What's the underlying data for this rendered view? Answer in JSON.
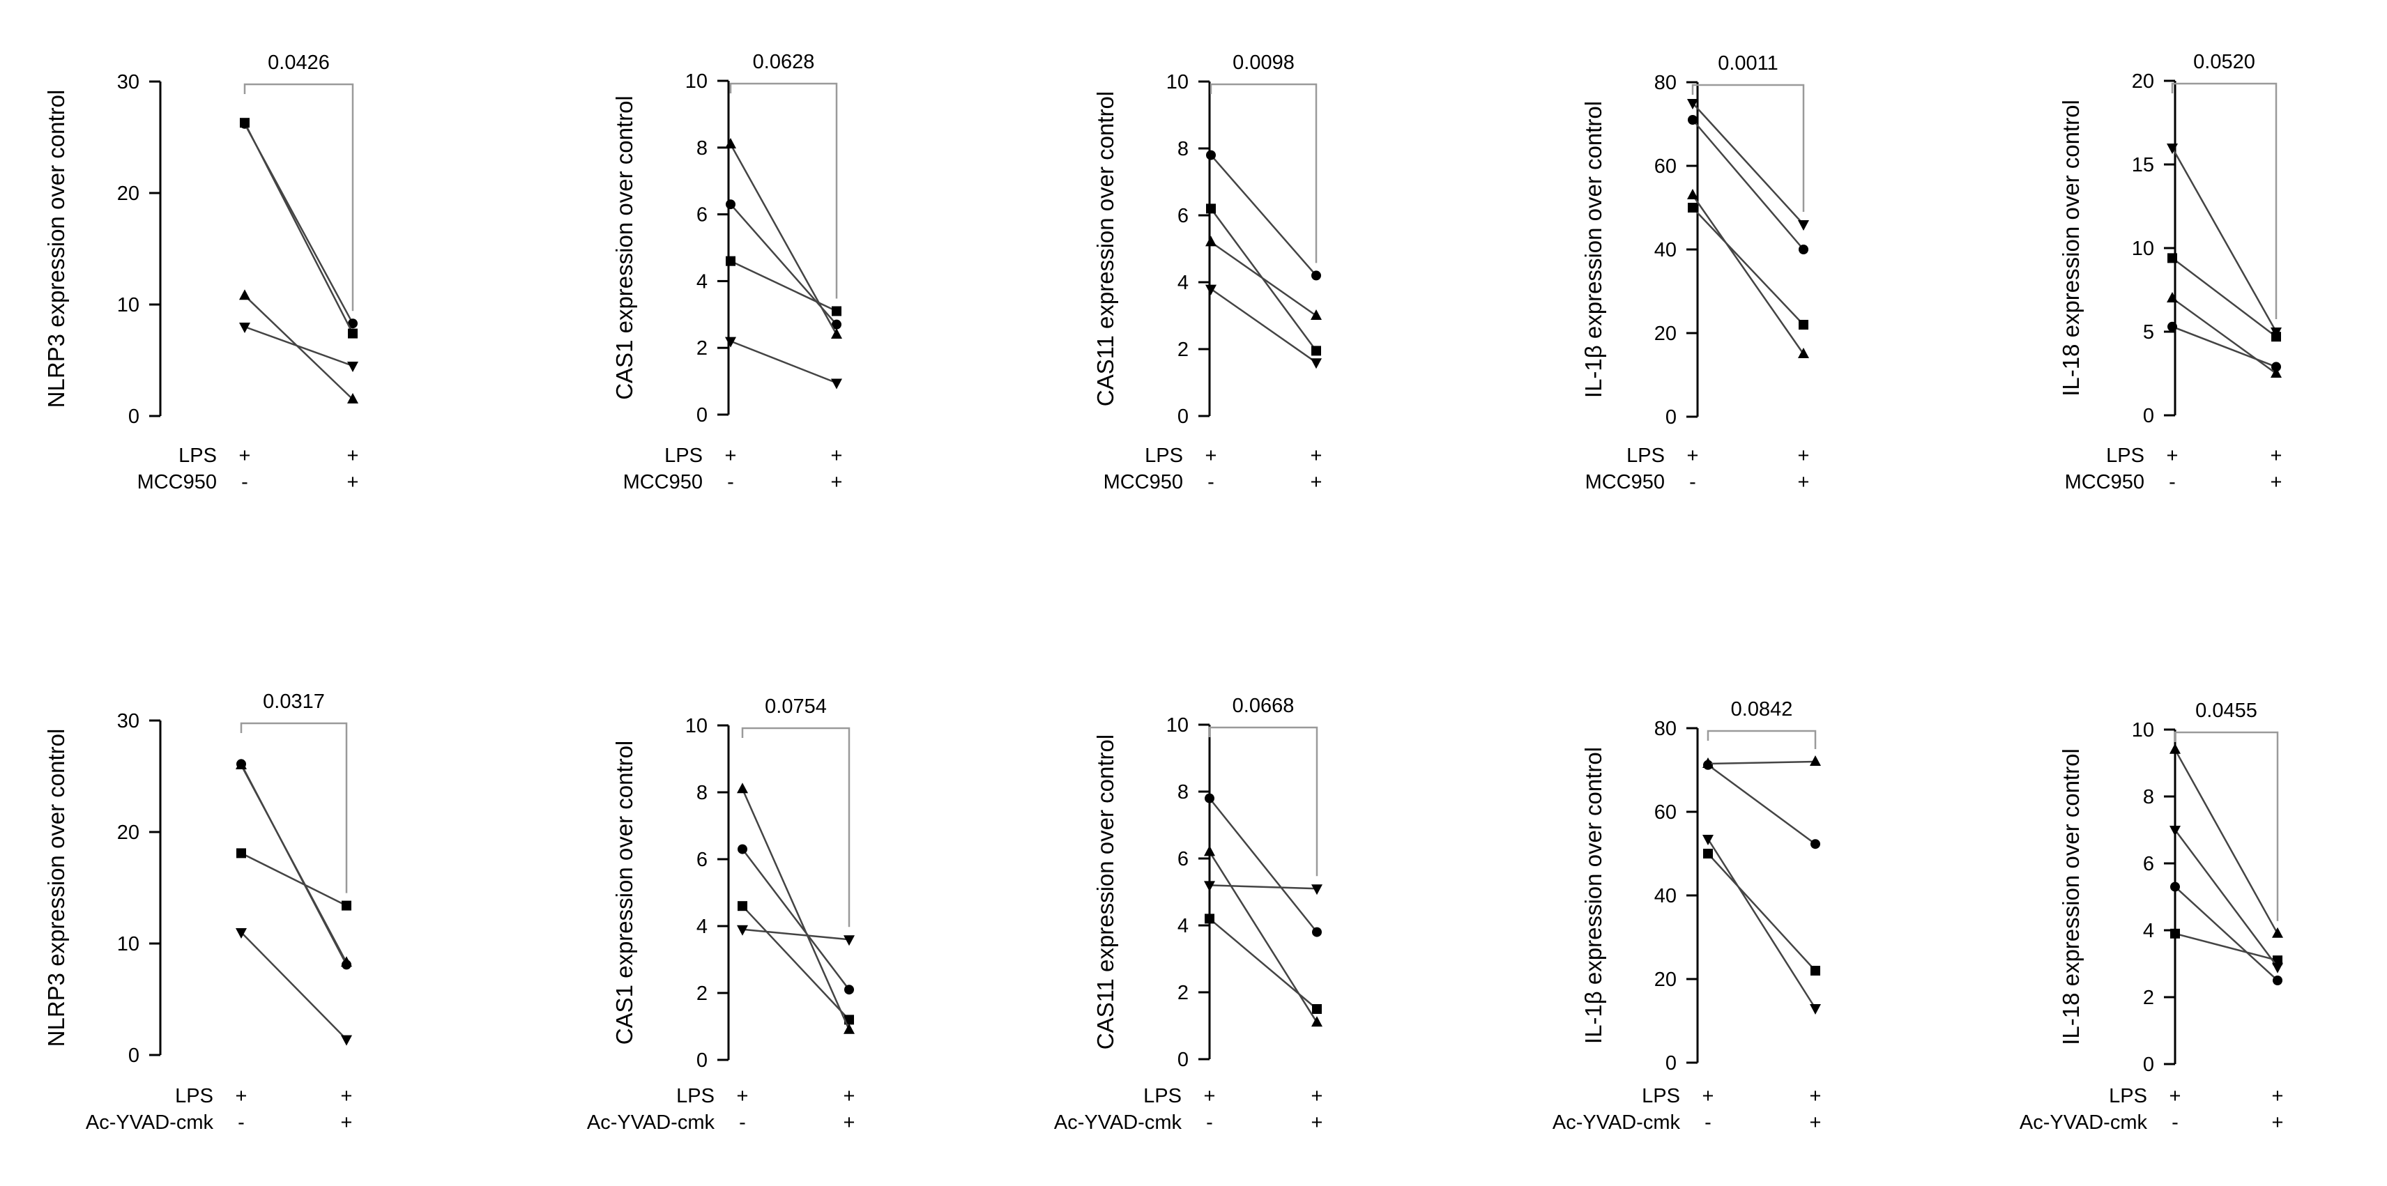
{
  "chart_data": [
    {
      "type": "line",
      "row": 1,
      "title": "",
      "xlabel": "",
      "ylabel": "NLRP3 expression over control",
      "ylim": [
        0,
        30
      ],
      "yticks": [
        0,
        10,
        20,
        30
      ],
      "p_value": "0.0426",
      "conditions": [
        {
          "name": "LPS",
          "values": [
            "+",
            "+"
          ]
        },
        {
          "name": "MCC950",
          "values": [
            "-",
            "+"
          ]
        }
      ],
      "series": [
        {
          "marker": "circle",
          "values": [
            26.2,
            8.3
          ]
        },
        {
          "marker": "square",
          "values": [
            26.3,
            7.4
          ]
        },
        {
          "marker": "triangle-up",
          "values": [
            10.8,
            1.5
          ]
        },
        {
          "marker": "triangle-down",
          "values": [
            8.0,
            4.5
          ]
        }
      ]
    },
    {
      "type": "line",
      "row": 1,
      "title": "",
      "xlabel": "",
      "ylabel": "CAS1 expression over control",
      "ylim": [
        0,
        10
      ],
      "yticks": [
        0,
        2,
        4,
        6,
        8,
        10
      ],
      "p_value": "0.0628",
      "conditions": [
        {
          "name": "LPS",
          "values": [
            "+",
            "+"
          ]
        },
        {
          "name": "MCC950",
          "values": [
            "-",
            "+"
          ]
        }
      ],
      "series": [
        {
          "marker": "circle",
          "values": [
            6.3,
            2.7
          ]
        },
        {
          "marker": "square",
          "values": [
            4.6,
            3.1
          ]
        },
        {
          "marker": "triangle-up",
          "values": [
            8.1,
            2.4
          ]
        },
        {
          "marker": "triangle-down",
          "values": [
            2.2,
            0.95
          ]
        }
      ]
    },
    {
      "type": "line",
      "row": 1,
      "title": "",
      "xlabel": "",
      "ylabel": "CAS11 expression over control",
      "ylim": [
        0,
        10
      ],
      "yticks": [
        0,
        2,
        4,
        6,
        8,
        10
      ],
      "p_value": "0.0098",
      "conditions": [
        {
          "name": "LPS",
          "values": [
            "+",
            "+"
          ]
        },
        {
          "name": "MCC950",
          "values": [
            "-",
            "+"
          ]
        }
      ],
      "series": [
        {
          "marker": "circle",
          "values": [
            7.8,
            4.2
          ]
        },
        {
          "marker": "square",
          "values": [
            6.2,
            1.95
          ]
        },
        {
          "marker": "triangle-up",
          "values": [
            5.2,
            3.0
          ]
        },
        {
          "marker": "triangle-down",
          "values": [
            3.8,
            1.6
          ]
        }
      ]
    },
    {
      "type": "line",
      "row": 1,
      "title": "",
      "xlabel": "",
      "ylabel": "IL-1β expression over control",
      "ylim": [
        0,
        80
      ],
      "yticks": [
        0,
        20,
        40,
        60,
        80
      ],
      "p_value": "0.0011",
      "conditions": [
        {
          "name": "LPS",
          "values": [
            "+",
            "+"
          ]
        },
        {
          "name": "MCC950",
          "values": [
            "-",
            "+"
          ]
        }
      ],
      "series": [
        {
          "marker": "circle",
          "values": [
            71,
            40
          ]
        },
        {
          "marker": "square",
          "values": [
            50,
            22
          ]
        },
        {
          "marker": "triangle-up",
          "values": [
            53,
            15
          ]
        },
        {
          "marker": "triangle-down",
          "values": [
            75,
            46
          ]
        }
      ]
    },
    {
      "type": "line",
      "row": 1,
      "title": "",
      "xlabel": "",
      "ylabel": "IL-18 expression over control",
      "ylim": [
        0,
        20
      ],
      "yticks": [
        0,
        5,
        10,
        15,
        20
      ],
      "p_value": "0.0520",
      "conditions": [
        {
          "name": "LPS",
          "values": [
            "+",
            "+"
          ]
        },
        {
          "name": "MCC950",
          "values": [
            "-",
            "+"
          ]
        }
      ],
      "series": [
        {
          "marker": "circle",
          "values": [
            5.3,
            2.9
          ]
        },
        {
          "marker": "square",
          "values": [
            9.4,
            4.7
          ]
        },
        {
          "marker": "triangle-up",
          "values": [
            7.0,
            2.5
          ]
        },
        {
          "marker": "triangle-down",
          "values": [
            16.0,
            5.0
          ]
        }
      ]
    },
    {
      "type": "line",
      "row": 2,
      "title": "",
      "xlabel": "",
      "ylabel": "NLRP3 expression over control",
      "ylim": [
        0,
        30
      ],
      "yticks": [
        0,
        10,
        20,
        30
      ],
      "p_value": "0.0317",
      "conditions": [
        {
          "name": "LPS",
          "values": [
            "+",
            "+"
          ]
        },
        {
          "name": "Ac-YVAD-cmk",
          "values": [
            "-",
            "+"
          ]
        }
      ],
      "series": [
        {
          "marker": "circle",
          "values": [
            26.1,
            8.1
          ]
        },
        {
          "marker": "square",
          "values": [
            18.1,
            13.4
          ]
        },
        {
          "marker": "triangle-up",
          "values": [
            26.0,
            8.3
          ]
        },
        {
          "marker": "triangle-down",
          "values": [
            11.0,
            1.4
          ]
        }
      ]
    },
    {
      "type": "line",
      "row": 2,
      "title": "",
      "xlabel": "",
      "ylabel": "CAS1 expression over control",
      "ylim": [
        0,
        10
      ],
      "yticks": [
        0,
        2,
        4,
        6,
        8,
        10
      ],
      "p_value": "0.0754",
      "conditions": [
        {
          "name": "LPS",
          "values": [
            "+",
            "+"
          ]
        },
        {
          "name": "Ac-YVAD-cmk",
          "values": [
            "-",
            "+"
          ]
        }
      ],
      "series": [
        {
          "marker": "circle",
          "values": [
            6.3,
            2.1
          ]
        },
        {
          "marker": "square",
          "values": [
            4.6,
            1.2
          ]
        },
        {
          "marker": "triangle-up",
          "values": [
            8.1,
            0.9
          ]
        },
        {
          "marker": "triangle-down",
          "values": [
            3.9,
            3.6
          ]
        }
      ]
    },
    {
      "type": "line",
      "row": 2,
      "title": "",
      "xlabel": "",
      "ylabel": "CAS11 expression over control",
      "ylim": [
        0,
        10
      ],
      "yticks": [
        0,
        2,
        4,
        6,
        8,
        10
      ],
      "p_value": "0.0668",
      "conditions": [
        {
          "name": "LPS",
          "values": [
            "+",
            "+"
          ]
        },
        {
          "name": "Ac-YVAD-cmk",
          "values": [
            "-",
            "+"
          ]
        }
      ],
      "series": [
        {
          "marker": "circle",
          "values": [
            7.8,
            3.8
          ]
        },
        {
          "marker": "square",
          "values": [
            4.2,
            1.5
          ]
        },
        {
          "marker": "triangle-up",
          "values": [
            6.2,
            1.1
          ]
        },
        {
          "marker": "triangle-down",
          "values": [
            5.2,
            5.1
          ]
        }
      ]
    },
    {
      "type": "line",
      "row": 2,
      "title": "",
      "xlabel": "",
      "ylabel": "IL-1β expression over control",
      "ylim": [
        0,
        80
      ],
      "yticks": [
        0,
        20,
        40,
        60,
        80
      ],
      "p_value": "0.0842",
      "conditions": [
        {
          "name": "LPS",
          "values": [
            "+",
            "+"
          ]
        },
        {
          "name": "Ac-YVAD-cmk",
          "values": [
            "-",
            "+"
          ]
        }
      ],
      "series": [
        {
          "marker": "circle",
          "values": [
            71.2,
            52.3
          ]
        },
        {
          "marker": "square",
          "values": [
            50,
            22
          ]
        },
        {
          "marker": "triangle-up",
          "values": [
            71.5,
            72
          ]
        },
        {
          "marker": "triangle-down",
          "values": [
            53.5,
            13
          ]
        }
      ]
    },
    {
      "type": "line",
      "row": 2,
      "title": "",
      "xlabel": "",
      "ylabel": "IL-18 expression over control",
      "ylim": [
        0,
        10
      ],
      "yticks": [
        0,
        2,
        4,
        6,
        8,
        10
      ],
      "p_value": "0.0455",
      "conditions": [
        {
          "name": "LPS",
          "values": [
            "+",
            "+"
          ]
        },
        {
          "name": "Ac-YVAD-cmk",
          "values": [
            "-",
            "+"
          ]
        }
      ],
      "series": [
        {
          "marker": "circle",
          "values": [
            5.3,
            2.5
          ]
        },
        {
          "marker": "square",
          "values": [
            3.9,
            3.1
          ]
        },
        {
          "marker": "triangle-up",
          "values": [
            9.4,
            3.9
          ]
        },
        {
          "marker": "triangle-down",
          "values": [
            7.0,
            2.9
          ]
        }
      ]
    }
  ],
  "colors": {
    "ink": "#000000",
    "bracket": "#9a9a9a",
    "series_line": "#444444"
  }
}
